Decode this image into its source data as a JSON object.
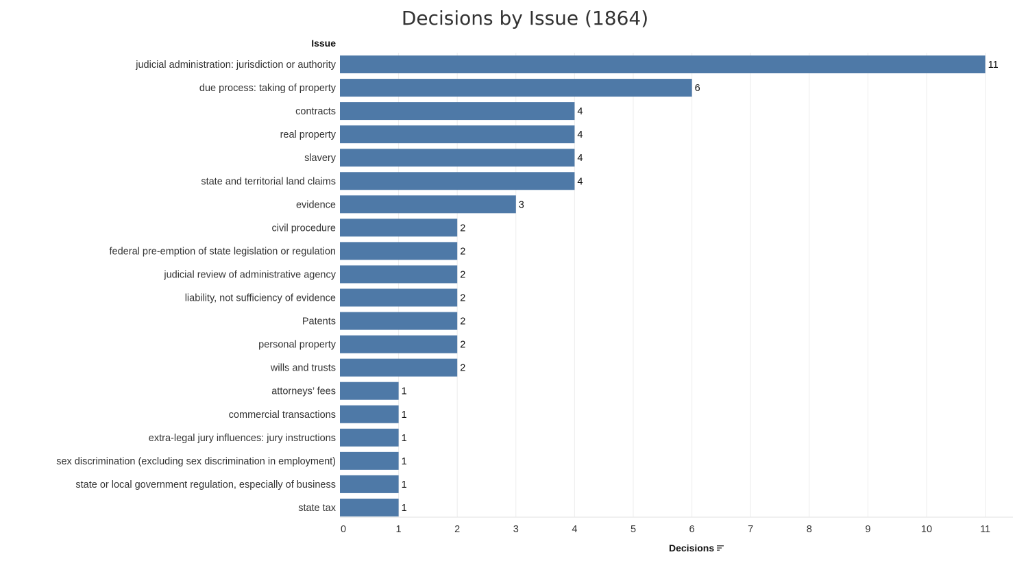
{
  "chart_data": {
    "type": "bar",
    "orientation": "horizontal",
    "title": "Decisions by Issue (1864)",
    "ylabel": "Issue",
    "xlabel": "Decisions",
    "xlim": [
      0,
      11
    ],
    "xticks": [
      0,
      1,
      2,
      3,
      4,
      5,
      6,
      7,
      8,
      9,
      10,
      11
    ],
    "grid": true,
    "bar_color": "#4e79a7",
    "sort_indicator": "sort-descending-icon",
    "categories": [
      "judicial administration: jurisdiction or authority",
      "due process: taking of property",
      "contracts",
      "real property",
      "slavery",
      "state and territorial land claims",
      "evidence",
      "civil procedure",
      "federal pre-emption of state legislation or regulation",
      "judicial review of administrative agency",
      "liability, not sufficiency of evidence",
      "Patents",
      "personal property",
      "wills and trusts",
      "attorneys’ fees",
      "commercial transactions",
      "extra-legal jury influences: jury instructions",
      "sex discrimination (excluding sex discrimination in employment)",
      "state or local government regulation, especially of business",
      "state tax"
    ],
    "values": [
      11,
      6,
      4,
      4,
      4,
      4,
      3,
      2,
      2,
      2,
      2,
      2,
      2,
      2,
      1,
      1,
      1,
      1,
      1,
      1
    ]
  }
}
